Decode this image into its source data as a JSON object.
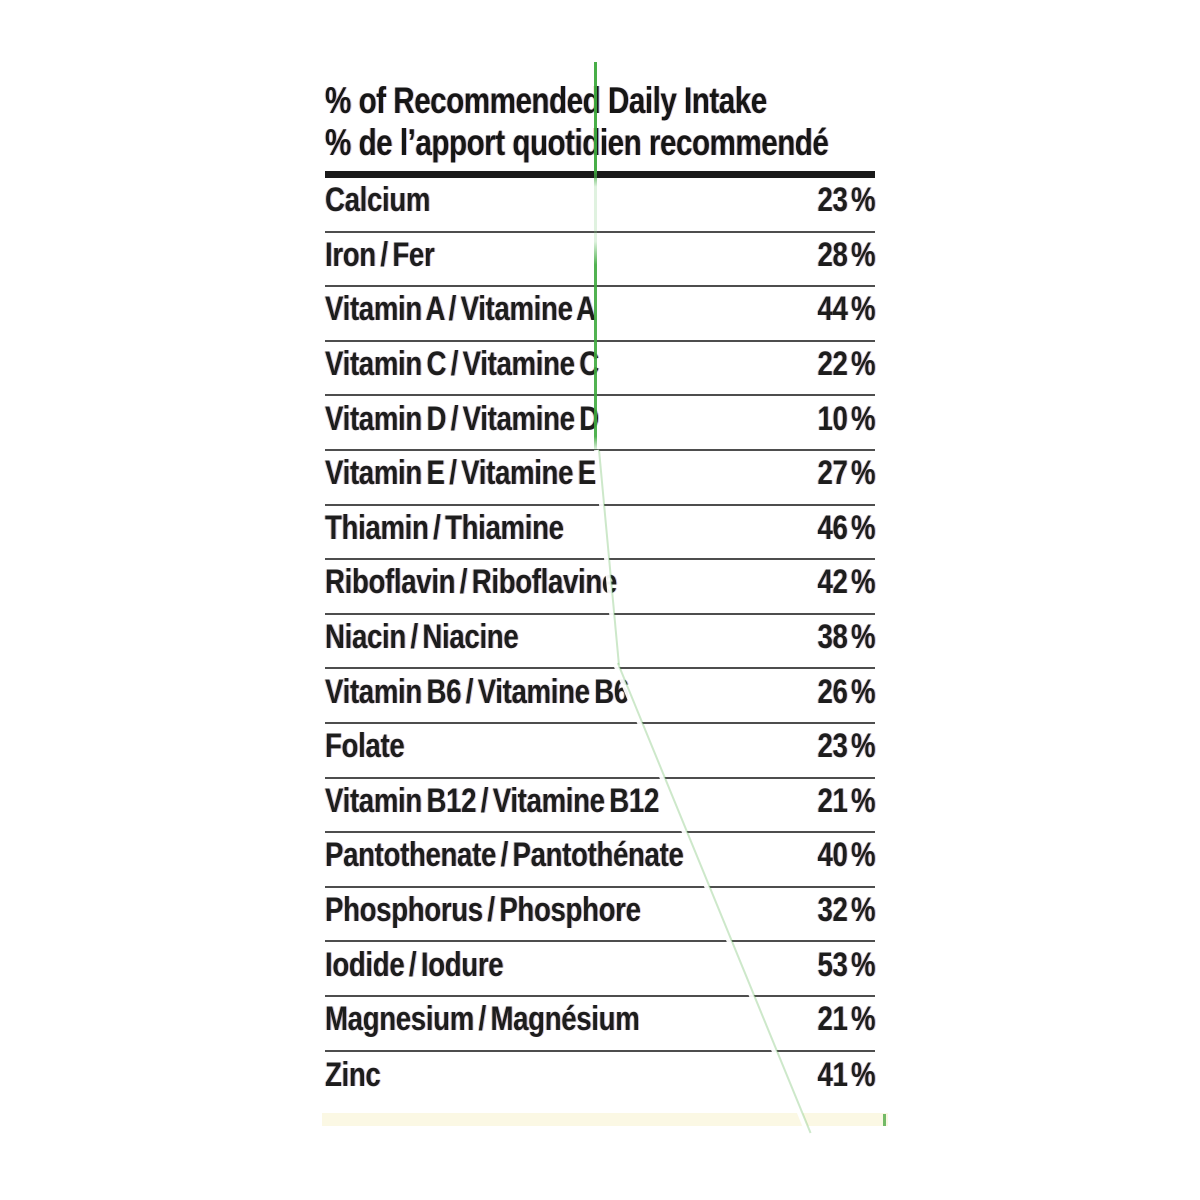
{
  "panel": {
    "title_en": "% of Recommended Daily Intake",
    "title_fr": "% de l’apport quotidien recommendé",
    "rows": [
      {
        "label": "Calcium",
        "percent": "23 %"
      },
      {
        "label": "Iron / Fer",
        "percent": "28 %"
      },
      {
        "label": "Vitamin A / Vitamine A",
        "percent": "44 %"
      },
      {
        "label": "Vitamin C / Vitamine C",
        "percent": "22 %"
      },
      {
        "label": "Vitamin D / Vitamine D",
        "percent": "10 %"
      },
      {
        "label": "Vitamin E / Vitamine E",
        "percent": "27 %"
      },
      {
        "label": "Thiamin / Thiamine",
        "percent": "46 %"
      },
      {
        "label": "Riboflavin / Riboflavine",
        "percent": "42 %"
      },
      {
        "label": "Niacin / Niacine",
        "percent": "38 %"
      },
      {
        "label": "Vitamin B6 / Vitamine B6",
        "percent": "26 %"
      },
      {
        "label": "Folate",
        "percent": "23 %"
      },
      {
        "label": "Vitamin B12 / Vitamine B12",
        "percent": "21 %"
      },
      {
        "label": "Pantothenate / Pantothénate",
        "percent": "40 %"
      },
      {
        "label": "Phosphorus / Phosphore",
        "percent": "32 %"
      },
      {
        "label": "Iodide / Iodure",
        "percent": "53 %"
      },
      {
        "label": "Magnesium / Magnésium",
        "percent": "21 %"
      },
      {
        "label": "Zinc",
        "percent": "41 %"
      }
    ],
    "colors": {
      "text": "#1d1d1d",
      "header_rule": "#1a1a1a",
      "row_separator": "#4e4e4e",
      "scan_artifact_green": "#3ea63e",
      "bottom_band_cream": "#fbf8e4",
      "background": "#ffffff"
    }
  }
}
